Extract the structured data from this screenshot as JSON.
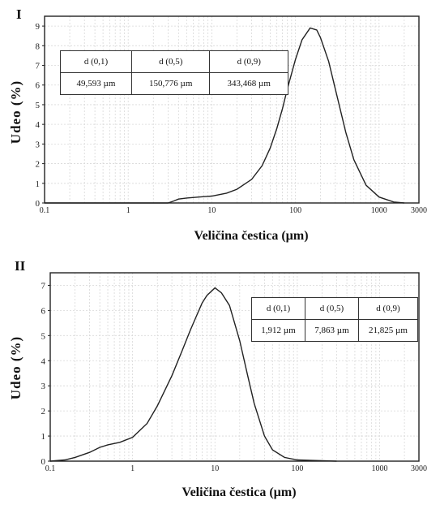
{
  "chart_data": [
    {
      "type": "line",
      "panel_label": "I",
      "xlabel": "Veličina čestica (µm)",
      "ylabel": "Udeo (%)",
      "xscale": "log",
      "xlim": [
        0.1,
        3000
      ],
      "ylim": [
        0,
        9.5
      ],
      "xticks": [
        "0.1",
        "1",
        "10",
        "100",
        "1000",
        "3000"
      ],
      "xtick_values": [
        0.1,
        1,
        10,
        100,
        1000,
        3000
      ],
      "yticks": [
        0,
        1,
        2,
        3,
        4,
        5,
        6,
        7,
        8,
        9
      ],
      "grid": true,
      "series": [
        {
          "x": [
            0.1,
            1,
            3,
            3.5,
            4,
            5,
            7,
            10,
            15,
            20,
            30,
            40,
            50,
            60,
            70,
            80,
            100,
            120,
            150,
            180,
            200,
            250,
            300,
            400,
            500,
            700,
            1000,
            1500,
            2000
          ],
          "y": [
            0,
            0,
            0,
            0.1,
            0.2,
            0.25,
            0.3,
            0.35,
            0.5,
            0.7,
            1.2,
            1.9,
            2.8,
            3.8,
            4.8,
            5.8,
            7.3,
            8.3,
            8.9,
            8.8,
            8.4,
            7.2,
            5.8,
            3.6,
            2.2,
            0.9,
            0.3,
            0.05,
            0
          ]
        }
      ],
      "table": {
        "headers": [
          "d (0,1)",
          "d (0,5)",
          "d (0,9)"
        ],
        "values": [
          "49,593 µm",
          "150,776 µm",
          "343,468 µm"
        ]
      }
    },
    {
      "type": "line",
      "panel_label": "II",
      "xlabel": "Veličina čestica (µm)",
      "ylabel": "Udeo (%)",
      "xscale": "log",
      "xlim": [
        0.1,
        3000
      ],
      "ylim": [
        0,
        7.5
      ],
      "xticks": [
        "0.1",
        "1",
        "10",
        "100",
        "1000",
        "3000"
      ],
      "xtick_values": [
        0.1,
        1,
        10,
        100,
        1000,
        3000
      ],
      "yticks": [
        0,
        1,
        2,
        3,
        4,
        5,
        6,
        7
      ],
      "grid": true,
      "series": [
        {
          "x": [
            0.1,
            0.15,
            0.2,
            0.3,
            0.4,
            0.5,
            0.7,
            1,
            1.5,
            2,
            3,
            4,
            5,
            6,
            7,
            8,
            10,
            12,
            15,
            20,
            25,
            30,
            40,
            50,
            70,
            100,
            200,
            300
          ],
          "y": [
            0,
            0.05,
            0.15,
            0.35,
            0.55,
            0.65,
            0.75,
            0.95,
            1.5,
            2.2,
            3.4,
            4.4,
            5.2,
            5.8,
            6.3,
            6.6,
            6.9,
            6.7,
            6.2,
            4.8,
            3.4,
            2.3,
            1.0,
            0.45,
            0.15,
            0.05,
            0.02,
            0
          ]
        }
      ],
      "table": {
        "headers": [
          "d (0,1)",
          "d (0,5)",
          "d (0,9)"
        ],
        "values": [
          "1,912 µm",
          "7,863 µm",
          "21,825 µm"
        ]
      }
    }
  ]
}
